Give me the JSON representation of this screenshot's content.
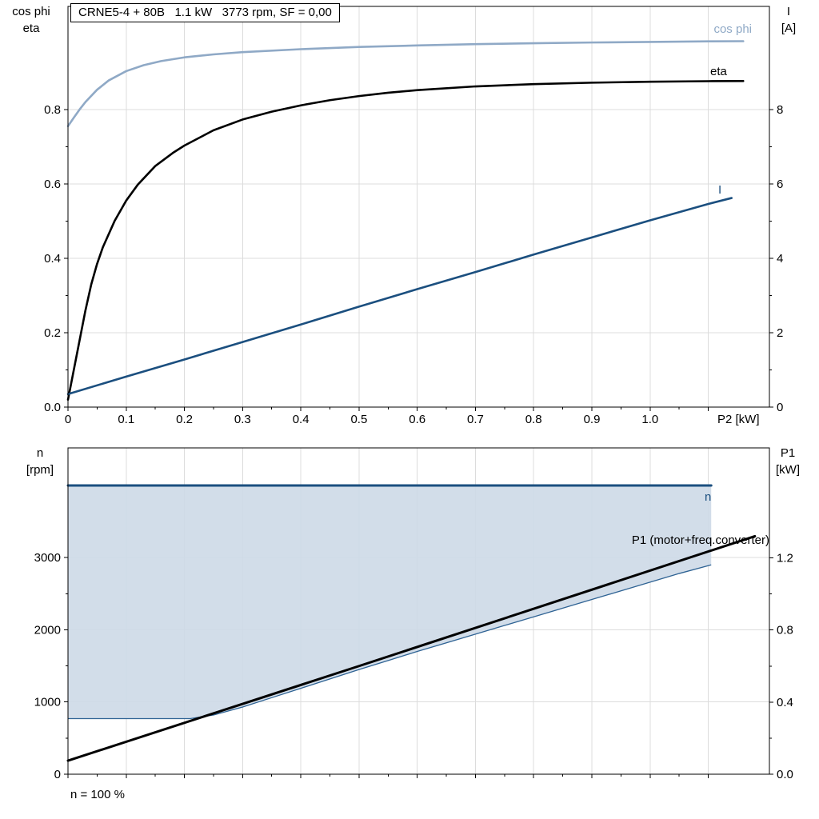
{
  "title_box": {
    "text": "CRNE5-4 + 80B   1.1 kW   3773 rpm, SF = 0,00"
  },
  "colors": {
    "cos_phi": "#8FA9C6",
    "eta": "#000000",
    "current": "#1B4F7F",
    "speed": "#1B4F7F",
    "p1": "#000000",
    "region_fill": "#CDD9E7",
    "region_edge": "#2F6394",
    "grid": "#DCDCDC",
    "frame": "#000000"
  },
  "chart_data": [
    {
      "type": "line",
      "title": "CRNE5-4 + 80B   1.1 kW   3773 rpm, SF = 0,00",
      "x_axis": {
        "label": "P2 [kW]",
        "range": [
          0,
          1.205
        ],
        "ticks": [
          0,
          0.1,
          0.2,
          0.3,
          0.4,
          0.5,
          0.6,
          0.7,
          0.8,
          0.9,
          1.0,
          1.1
        ],
        "tick_labels": [
          "0",
          "0.1",
          "0.2",
          "0.3",
          "0.4",
          "0.5",
          "0.6",
          "0.7",
          "0.8",
          "0.9",
          "1.0",
          ""
        ]
      },
      "y_left": {
        "title_lines": [
          "cos phi",
          "eta"
        ],
        "range": [
          0,
          1.077
        ],
        "ticks": [
          0,
          0.2,
          0.4,
          0.6,
          0.8
        ],
        "tick_labels": [
          "0.0",
          "0.2",
          "0.4",
          "0.6",
          "0.8"
        ]
      },
      "y_right": {
        "title_lines": [
          "I",
          "[A]"
        ],
        "range": [
          0,
          10.77
        ],
        "ticks": [
          0,
          2,
          4,
          6,
          8
        ],
        "tick_labels": [
          "0",
          "2",
          "4",
          "6",
          "8"
        ]
      },
      "series": [
        {
          "name": "cos phi",
          "axis": "left",
          "color": "#8FA9C6",
          "width": 2.6,
          "points": [
            [
              0,
              0.755
            ],
            [
              0.01,
              0.778
            ],
            [
              0.02,
              0.8
            ],
            [
              0.03,
              0.82
            ],
            [
              0.05,
              0.853
            ],
            [
              0.07,
              0.878
            ],
            [
              0.1,
              0.903
            ],
            [
              0.13,
              0.919
            ],
            [
              0.16,
              0.93
            ],
            [
              0.2,
              0.94
            ],
            [
              0.25,
              0.948
            ],
            [
              0.3,
              0.954
            ],
            [
              0.4,
              0.962
            ],
            [
              0.5,
              0.968
            ],
            [
              0.6,
              0.972
            ],
            [
              0.7,
              0.9755
            ],
            [
              0.8,
              0.978
            ],
            [
              0.9,
              0.98
            ],
            [
              1.0,
              0.9815
            ],
            [
              1.1,
              0.983
            ],
            [
              1.16,
              0.9835
            ]
          ]
        },
        {
          "name": "eta",
          "axis": "left",
          "color": "#000000",
          "width": 2.6,
          "points": [
            [
              0,
              0.02
            ],
            [
              0.01,
              0.1
            ],
            [
              0.02,
              0.18
            ],
            [
              0.03,
              0.26
            ],
            [
              0.04,
              0.33
            ],
            [
              0.05,
              0.385
            ],
            [
              0.06,
              0.43
            ],
            [
              0.08,
              0.5
            ],
            [
              0.1,
              0.555
            ],
            [
              0.12,
              0.598
            ],
            [
              0.15,
              0.648
            ],
            [
              0.18,
              0.683
            ],
            [
              0.2,
              0.703
            ],
            [
              0.25,
              0.744
            ],
            [
              0.3,
              0.773
            ],
            [
              0.35,
              0.794
            ],
            [
              0.4,
              0.811
            ],
            [
              0.45,
              0.825
            ],
            [
              0.5,
              0.836
            ],
            [
              0.55,
              0.845
            ],
            [
              0.6,
              0.852
            ],
            [
              0.7,
              0.862
            ],
            [
              0.8,
              0.868
            ],
            [
              0.9,
              0.872
            ],
            [
              1.0,
              0.8745
            ],
            [
              1.1,
              0.876
            ],
            [
              1.16,
              0.8765
            ]
          ]
        },
        {
          "name": "I",
          "axis": "right",
          "color": "#1B4F7F",
          "width": 2.6,
          "points": [
            [
              0,
              0.35
            ],
            [
              0.1,
              0.82
            ],
            [
              0.2,
              1.28
            ],
            [
              0.3,
              1.75
            ],
            [
              0.4,
              2.22
            ],
            [
              0.5,
              2.7
            ],
            [
              0.6,
              3.17
            ],
            [
              0.7,
              3.63
            ],
            [
              0.8,
              4.1
            ],
            [
              0.9,
              4.56
            ],
            [
              1.0,
              5.02
            ],
            [
              1.1,
              5.46
            ],
            [
              1.14,
              5.62
            ]
          ]
        }
      ]
    },
    {
      "type": "line",
      "x_axis": {
        "label": "",
        "range": [
          0,
          1.205
        ],
        "ticks": [
          0,
          0.1,
          0.2,
          0.3,
          0.4,
          0.5,
          0.6,
          0.7,
          0.8,
          0.9,
          1.0,
          1.1
        ],
        "tick_labels": [
          "",
          "",
          "",
          "",
          "",
          "",
          "",
          "",
          "",
          "",
          "",
          ""
        ]
      },
      "y_left": {
        "title_lines": [
          "n",
          "[rpm]"
        ],
        "range": [
          0,
          4520
        ],
        "ticks": [
          0,
          1000,
          2000,
          3000
        ],
        "tick_labels": [
          "0",
          "1000",
          "2000",
          "3000"
        ]
      },
      "y_right": {
        "title_lines": [
          "P1",
          "[kW]"
        ],
        "range": [
          0,
          1.81
        ],
        "ticks": [
          0,
          0.4,
          0.8,
          1.2
        ],
        "tick_labels": [
          "0.0",
          "0.4",
          "0.8",
          "1.2"
        ]
      },
      "region": {
        "name": "speed-operating-range",
        "axis": "left",
        "top": 4000,
        "lower_points": [
          [
            0,
            770
          ],
          [
            0.21,
            770
          ],
          [
            0.25,
            820
          ],
          [
            0.3,
            930
          ],
          [
            0.35,
            1060
          ],
          [
            0.4,
            1190
          ],
          [
            0.45,
            1320
          ],
          [
            0.5,
            1450
          ],
          [
            0.55,
            1575
          ],
          [
            0.6,
            1700
          ],
          [
            0.65,
            1820
          ],
          [
            0.7,
            1940
          ],
          [
            0.75,
            2060
          ],
          [
            0.8,
            2180
          ],
          [
            0.85,
            2300
          ],
          [
            0.9,
            2420
          ],
          [
            0.95,
            2540
          ],
          [
            1.0,
            2660
          ],
          [
            1.05,
            2780
          ],
          [
            1.105,
            2900
          ]
        ]
      },
      "series": [
        {
          "name": "n",
          "axis": "left",
          "color": "#1B4F7F",
          "width": 3,
          "points": [
            [
              0,
              4000
            ],
            [
              1.105,
              4000
            ]
          ]
        },
        {
          "name": "P1 (motor+freq.converter)",
          "axis": "right",
          "color": "#000000",
          "width": 3,
          "points": [
            [
              0,
              0.075
            ],
            [
              0.5,
              0.6
            ],
            [
              1.18,
              1.32
            ]
          ]
        }
      ],
      "footnote": "n = 100 %"
    }
  ]
}
